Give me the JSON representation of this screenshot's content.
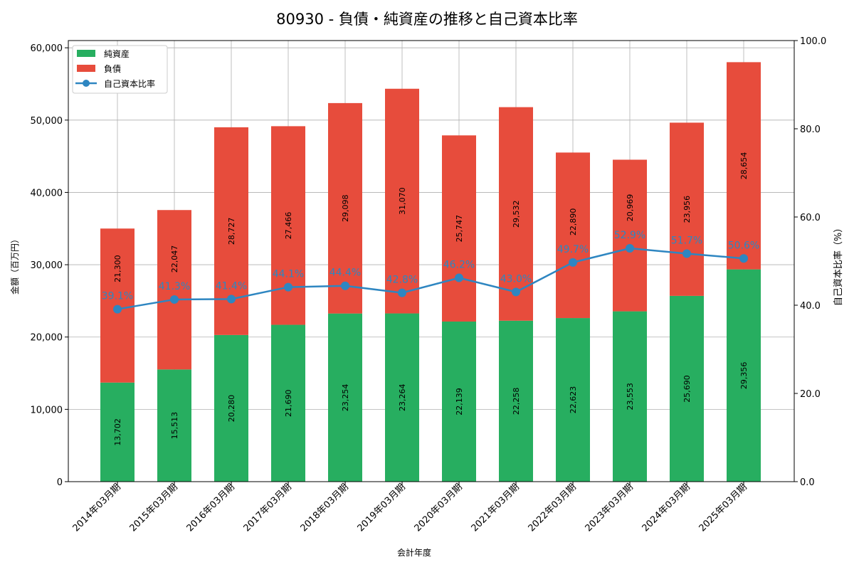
{
  "chart_data": {
    "type": "bar",
    "title": "80930 - 負債・純資産の推移と自己資本比率",
    "xlabel": "会計年度",
    "ylabel": "金額（百万円）",
    "y2label": "自己資本比率（%）",
    "ylim": [
      0,
      61000
    ],
    "y2lim": [
      0,
      100
    ],
    "yticks": [
      0,
      10000,
      20000,
      30000,
      40000,
      50000,
      60000
    ],
    "ytick_labels": [
      "0",
      "10,000",
      "20,000",
      "30,000",
      "40,000",
      "50,000",
      "60,000"
    ],
    "y2ticks": [
      0,
      20,
      40,
      60,
      80,
      100
    ],
    "y2tick_labels": [
      "0.0",
      "20.0",
      "40.0",
      "60.0",
      "80.0",
      "100.0"
    ],
    "grid": true,
    "legend": {
      "placement": "top-left",
      "entries": [
        "純資産",
        "負債",
        "自己資本比率"
      ]
    },
    "categories": [
      "2014年03月期",
      "2015年03月期",
      "2016年03月期",
      "2017年03月期",
      "2018年03月期",
      "2019年03月期",
      "2020年03月期",
      "2021年03月期",
      "2022年03月期",
      "2023年03月期",
      "2024年03月期",
      "2025年03月期"
    ],
    "series": [
      {
        "name": "純資産",
        "color": "#27ae60",
        "values": [
          13702,
          15513,
          20280,
          21690,
          23254,
          23264,
          22139,
          22258,
          22623,
          23553,
          25690,
          29356
        ],
        "labels": [
          "13,702",
          "15,513",
          "20,280",
          "21,690",
          "23,254",
          "23,264",
          "22,139",
          "22,258",
          "22,623",
          "23,553",
          "25,690",
          "29,356"
        ]
      },
      {
        "name": "負債",
        "color": "#e74c3c",
        "values": [
          21300,
          22047,
          28727,
          27466,
          29098,
          31070,
          25747,
          29532,
          22890,
          20969,
          23956,
          28654
        ],
        "labels": [
          "21,300",
          "22,047",
          "28,727",
          "27,466",
          "29,098",
          "31,070",
          "25,747",
          "29,532",
          "22,890",
          "20,969",
          "23,956",
          "28,654"
        ]
      },
      {
        "name": "自己資本比率",
        "color": "#2e86c1",
        "axis": "right",
        "values": [
          39.1,
          41.3,
          41.4,
          44.1,
          44.4,
          42.8,
          46.2,
          43.0,
          49.7,
          52.9,
          51.7,
          50.6
        ],
        "labels": [
          "39.1%",
          "41.3%",
          "41.4%",
          "44.1%",
          "44.4%",
          "42.8%",
          "46.2%",
          "43.0%",
          "49.7%",
          "52.9%",
          "51.7%",
          "50.6%"
        ]
      }
    ]
  }
}
